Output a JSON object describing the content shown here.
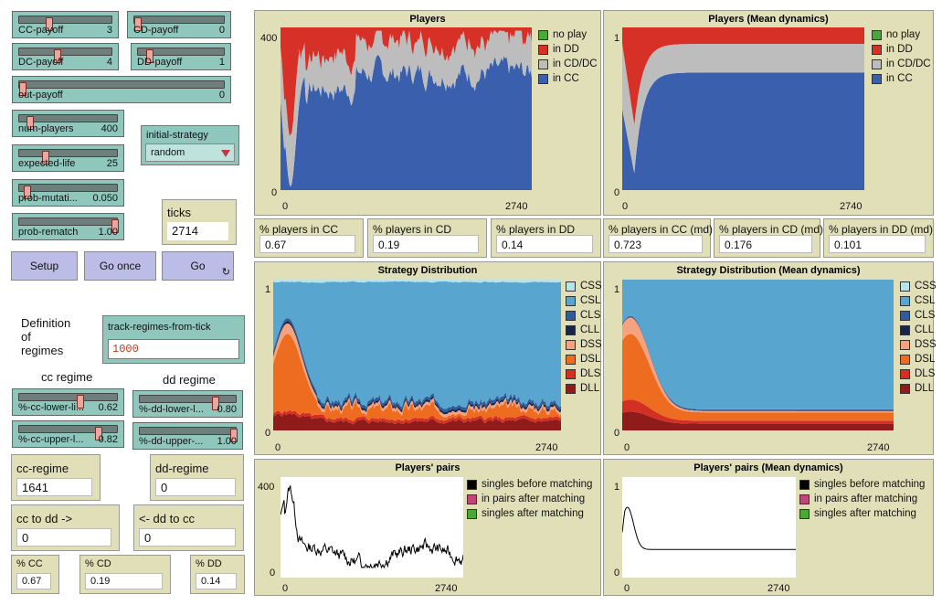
{
  "sliders": {
    "cc_payoff": {
      "label": "CC-payoff",
      "value": "3",
      "fraction": 0.3
    },
    "cd_payoff": {
      "label": "CD-payoff",
      "value": "0",
      "fraction": 0.0
    },
    "dc_payoff": {
      "label": "DC-payoff",
      "value": "4",
      "fraction": 0.4
    },
    "dd_payoff": {
      "label": "DD-payoff",
      "value": "1",
      "fraction": 0.1
    },
    "out_payoff": {
      "label": "out-payoff",
      "value": "0",
      "fraction": 0.0
    },
    "num_players": {
      "label": "num-players",
      "value": "400",
      "fraction": 0.08
    },
    "expected_life": {
      "label": "expected-life",
      "value": "25",
      "fraction": 0.25
    },
    "prob_mutation": {
      "label": "prob-mutati...",
      "value": "0.050",
      "fraction": 0.05
    },
    "prob_rematch": {
      "label": "prob-rematch",
      "value": "1.00",
      "fraction": 1.0
    },
    "cc_lower": {
      "label": "%-cc-lower-li...",
      "value": "0.62",
      "fraction": 0.62
    },
    "cc_upper": {
      "label": "%-cc-upper-l...",
      "value": "0.82",
      "fraction": 0.82
    },
    "dd_lower": {
      "label": "%-dd-lower-l...",
      "value": "0.80",
      "fraction": 0.8
    },
    "dd_upper": {
      "label": "%-dd-upper-...",
      "value": "1.00",
      "fraction": 1.0
    }
  },
  "chooser": {
    "label": "initial-strategy",
    "value": "random"
  },
  "ticks": {
    "label": "ticks",
    "value": "2714"
  },
  "buttons": {
    "setup": "Setup",
    "go_once": "Go once",
    "go": "Go"
  },
  "definition": {
    "line1": "Definition",
    "line2": "of",
    "line3": "regimes"
  },
  "track_input": {
    "label": "track-regimes-from-tick",
    "value": "1000"
  },
  "headers": {
    "cc": "cc regime",
    "dd": "dd regime"
  },
  "left_monitors": {
    "cc_regime": {
      "label": "cc-regime",
      "value": "1641"
    },
    "dd_regime": {
      "label": "dd-regime",
      "value": "0"
    },
    "cc_to_dd": {
      "label": "cc to dd ->",
      "value": "0"
    },
    "dd_to_cc": {
      "label": "<- dd to cc",
      "value": "0"
    },
    "pcc": {
      "label": "% CC",
      "value": "0.67"
    },
    "pcd": {
      "label": "% CD",
      "value": "0.19"
    },
    "pdd": {
      "label": "% DD",
      "value": "0.14"
    }
  },
  "players_monitors": [
    {
      "label": "% players in CC",
      "value": "0.67"
    },
    {
      "label": "% players in CD",
      "value": "0.19"
    },
    {
      "label": "% players in DD",
      "value": "0.14"
    },
    {
      "label": "% players in CC (md)",
      "value": "0.723"
    },
    {
      "label": "% players in CD (md)",
      "value": "0.176"
    },
    {
      "label": "% players in DD (md)",
      "value": "0.101"
    }
  ],
  "colors": {
    "no_play": "#4aa83a",
    "dd": "#d73027",
    "cdc": "#bdbdbd",
    "cc": "#3a5fad",
    "CSS": "#b6e3ec",
    "CSL": "#58a6d0",
    "CLS": "#2f5c9a",
    "CLL": "#16264d",
    "DSS": "#f4a27f",
    "DSL": "#ee6c1f",
    "DLS": "#d42f23",
    "DLL": "#8f1b1b",
    "singles_before": "#000000",
    "pairs_after": "#c0457d",
    "singles_after": "#4aa83a"
  },
  "plots": {
    "players": {
      "title": "Players",
      "ymax": "400",
      "ymin": "0",
      "xmin": "0",
      "xmax": "2740",
      "legend": [
        "no play",
        "in DD",
        "in CD/DC",
        "in CC"
      ]
    },
    "players_md": {
      "title": "Players (Mean dynamics)",
      "ymax": "1",
      "ymin": "0",
      "xmin": "0",
      "xmax": "2740",
      "legend": [
        "no play",
        "in DD",
        "in CD/DC",
        "in CC"
      ]
    },
    "strategy": {
      "title": "Strategy Distribution",
      "ymax": "1",
      "ymin": "0",
      "xmin": "0",
      "xmax": "2740",
      "legend": [
        "CSS",
        "CSL",
        "CLS",
        "CLL",
        "DSS",
        "DSL",
        "DLS",
        "DLL"
      ]
    },
    "strategy_md": {
      "title": "Strategy Distribution (Mean dynamics)",
      "ymax": "1",
      "ymin": "0",
      "xmin": "0",
      "xmax": "2740",
      "legend": [
        "CSS",
        "CSL",
        "CLS",
        "CLL",
        "DSS",
        "DSL",
        "DLS",
        "DLL"
      ]
    },
    "pairs": {
      "title": "Players' pairs",
      "ymax": "400",
      "ymin": "0",
      "xmin": "0",
      "xmax": "2740",
      "legend": [
        "singles before matching",
        "in pairs after matching",
        "singles after matching"
      ]
    },
    "pairs_md": {
      "title": "Players' pairs (Mean dynamics)",
      "ymax": "1",
      "ymin": "0",
      "xmin": "0",
      "xmax": "2740",
      "legend": [
        "singles before matching",
        "in pairs after matching",
        "singles after matching"
      ]
    }
  },
  "chart_data": [
    {
      "type": "area",
      "title": "Players",
      "x_range": [
        0,
        2740
      ],
      "y_range": [
        0,
        400
      ],
      "series": [
        {
          "name": "in CC",
          "final": 268
        },
        {
          "name": "in CD/DC",
          "final": 76
        },
        {
          "name": "in DD",
          "final": 56
        },
        {
          "name": "no play",
          "final": 0
        }
      ]
    },
    {
      "type": "area",
      "title": "Players (Mean dynamics)",
      "x_range": [
        0,
        2740
      ],
      "y_range": [
        0,
        1
      ],
      "series": [
        {
          "name": "in CC",
          "final": 0.723
        },
        {
          "name": "in CD/DC",
          "final": 0.176
        },
        {
          "name": "in DD",
          "final": 0.101
        },
        {
          "name": "no play",
          "final": 0
        }
      ]
    },
    {
      "type": "area",
      "title": "Strategy Distribution",
      "x_range": [
        0,
        2740
      ],
      "y_range": [
        0,
        1
      ]
    },
    {
      "type": "area",
      "title": "Strategy Distribution (Mean dynamics)",
      "x_range": [
        0,
        2740
      ],
      "y_range": [
        0,
        1
      ]
    },
    {
      "type": "line",
      "title": "Players' pairs",
      "x_range": [
        0,
        2740
      ],
      "y_range": [
        0,
        400
      ],
      "series": [
        {
          "name": "singles before matching",
          "peak": [
            40,
            340
          ],
          "final": 90
        }
      ]
    },
    {
      "type": "line",
      "title": "Players' pairs (Mean dynamics)",
      "x_range": [
        0,
        2740
      ],
      "y_range": [
        0,
        1
      ],
      "series": [
        {
          "name": "singles before matching",
          "peak": [
            40,
            0.68
          ],
          "final": 0.28
        }
      ]
    }
  ]
}
